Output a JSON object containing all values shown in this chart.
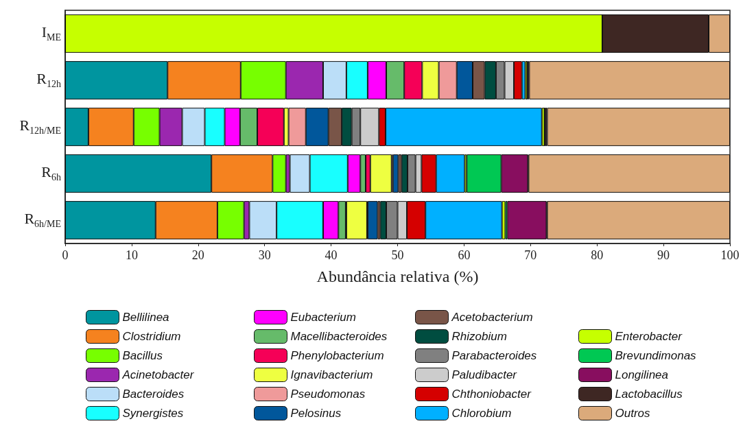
{
  "chart_data": {
    "type": "bar",
    "orientation": "horizontal",
    "stacked": true,
    "xlabel": "Abundância relativa (%)",
    "xlim": [
      0,
      100
    ],
    "xticks": [
      0,
      10,
      20,
      30,
      40,
      50,
      60,
      70,
      80,
      90,
      100
    ],
    "legend": "bottom",
    "grid": false,
    "categories": [
      "I$_{ME}$",
      "R$_{12h}$",
      "R$_{12h/ME}$",
      "R$_{6h}$",
      "R$_{6h/ME}$"
    ],
    "series": [
      {
        "name": "Bellilinea",
        "color": "#00959f",
        "values": [
          0,
          15.4,
          3.5,
          22.0,
          13.6
        ]
      },
      {
        "name": "Clostridium",
        "color": "#f5821f",
        "values": [
          0,
          11.0,
          6.8,
          9.2,
          9.3
        ]
      },
      {
        "name": "Bacillus",
        "color": "#77ff00",
        "values": [
          0,
          6.8,
          3.9,
          2.0,
          4.0
        ]
      },
      {
        "name": "Acinetobacter",
        "color": "#9b27af",
        "values": [
          0,
          5.6,
          3.4,
          0.6,
          0.8
        ]
      },
      {
        "name": "Bacteroides",
        "color": "#bbdef8",
        "values": [
          0,
          3.5,
          3.4,
          3.0,
          4.1
        ]
      },
      {
        "name": "Synergistes",
        "color": "#18ffff",
        "values": [
          0,
          3.2,
          3.0,
          5.7,
          7.0
        ]
      },
      {
        "name": "Eubacterium",
        "color": "#ff00ff",
        "values": [
          0,
          2.8,
          2.3,
          1.9,
          2.3
        ]
      },
      {
        "name": "Macellibacteroides",
        "color": "#66bb6a",
        "values": [
          0,
          2.7,
          2.6,
          0.8,
          1.1
        ]
      },
      {
        "name": "Phenylobacterium",
        "color": "#f50057",
        "values": [
          0,
          2.7,
          4.0,
          0.7,
          0.1
        ]
      },
      {
        "name": "Ignavibacterium",
        "color": "#eeff41",
        "values": [
          0,
          2.5,
          0.7,
          3.2,
          3.1
        ]
      },
      {
        "name": "Pseudomonas",
        "color": "#ef9a9a",
        "values": [
          0,
          2.7,
          2.6,
          0.2,
          0.1
        ]
      },
      {
        "name": "Pelosinus",
        "color": "#01579b",
        "values": [
          0,
          2.4,
          3.4,
          0.8,
          1.5
        ]
      },
      {
        "name": "Acetobacterium",
        "color": "#795548",
        "values": [
          0,
          1.8,
          2.0,
          0.5,
          0.4
        ]
      },
      {
        "name": "Rhizobium",
        "color": "#004d40",
        "values": [
          0,
          1.7,
          1.5,
          0.9,
          0.9
        ]
      },
      {
        "name": "Parabacteroides",
        "color": "#808080",
        "values": [
          0,
          1.3,
          1.3,
          1.2,
          1.7
        ]
      },
      {
        "name": "Paludibacter",
        "color": "#cccccc",
        "values": [
          0,
          1.4,
          2.8,
          0.9,
          1.4
        ]
      },
      {
        "name": "Chthoniobacter",
        "color": "#d50000",
        "values": [
          0,
          1.2,
          1.0,
          2.2,
          2.8
        ]
      },
      {
        "name": "Chlorobium",
        "color": "#00b0ff",
        "values": [
          0,
          0.5,
          23.5,
          4.3,
          11.5
        ]
      },
      {
        "name": "Enterobacter",
        "color": "#c6ff00",
        "values": [
          80.8,
          0.3,
          0.4,
          0.3,
          0.5
        ]
      },
      {
        "name": "Brevundimonas",
        "color": "#00c853",
        "values": [
          0,
          0,
          0,
          5.2,
          0.3
        ]
      },
      {
        "name": "Longilinea",
        "color": "#880e5f",
        "values": [
          0,
          0.1,
          0.1,
          4.0,
          5.9
        ]
      },
      {
        "name": "Lactobacillus",
        "color": "#3e2723",
        "values": [
          16.0,
          0.2,
          0.3,
          0.1,
          0.1
        ]
      },
      {
        "name": "Outros",
        "color": "#dbaa7b",
        "values": [
          3.2,
          30.2,
          27.5,
          30.3,
          27.5
        ]
      }
    ]
  }
}
